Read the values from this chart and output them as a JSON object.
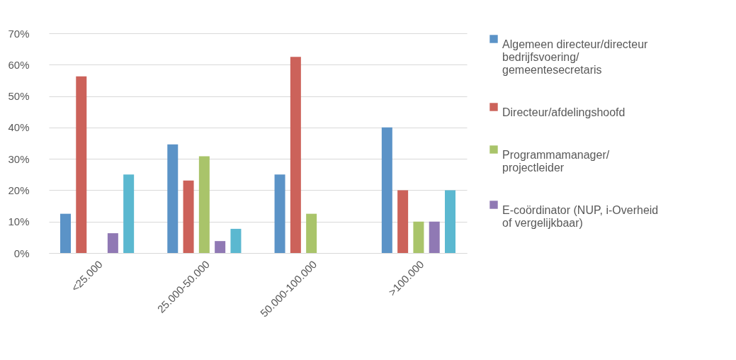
{
  "chart_data": {
    "type": "bar",
    "categories": [
      "<25.000",
      "25.000-50.000",
      "50.000-100.000",
      ">100.000"
    ],
    "series": [
      {
        "name": "Algemeen directeur/directeur bedrijfsvoering/ gemeentesecretaris",
        "color": "#5b93c7",
        "values": [
          12.5,
          34.6,
          25,
          40
        ]
      },
      {
        "name": "Directeur/afdelingshoofd",
        "color": "#cc625a",
        "values": [
          56.3,
          23.1,
          62.5,
          20
        ]
      },
      {
        "name": "Programmamanager/ projectleider",
        "color": "#a9c46a",
        "values": [
          null,
          30.8,
          12.5,
          10
        ]
      },
      {
        "name": "E-coördinator (NUP, i-Overheid of vergelijkbaar)",
        "color": "#9079b4",
        "values": [
          6.3,
          3.8,
          null,
          10
        ]
      },
      {
        "color": "#5bb8d0",
        "values": [
          25,
          7.7,
          null,
          20
        ]
      }
    ],
    "ylim": [
      0,
      70
    ],
    "yticks": [
      {
        "value": 0,
        "label": "0%"
      },
      {
        "value": 10,
        "label": "10%"
      },
      {
        "value": 20,
        "label": "20%"
      },
      {
        "value": 30,
        "label": "30%"
      },
      {
        "value": 40,
        "label": "40%"
      },
      {
        "value": 50,
        "label": "50%"
      },
      {
        "value": 60,
        "label": "60%"
      },
      {
        "value": 70,
        "label": "70%"
      }
    ],
    "grid": "y",
    "legend": "right"
  }
}
